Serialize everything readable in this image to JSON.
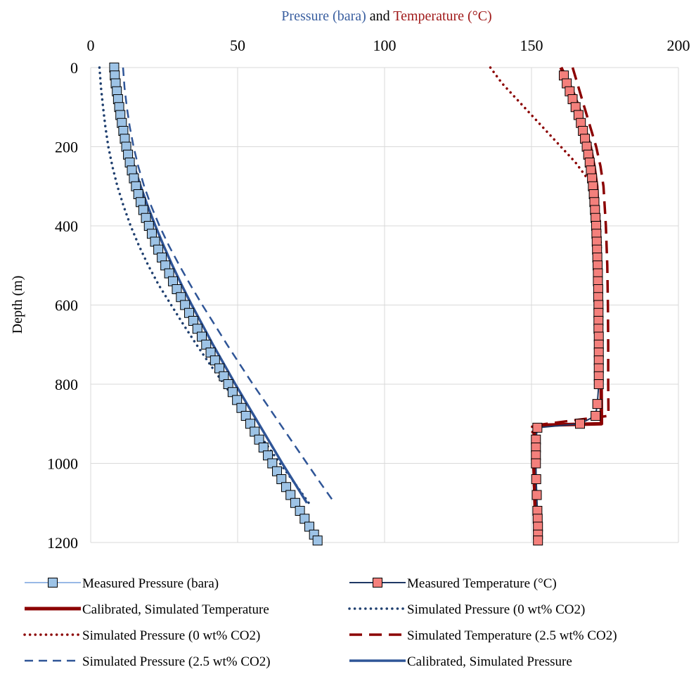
{
  "chart_data": {
    "type": "line",
    "title_parts": [
      {
        "text": "Pressure (bara)",
        "color": "#3a5fa0"
      },
      {
        "text": " and ",
        "color": "#000000"
      },
      {
        "text": "Temperature (°C)",
        "color": "#a01a1a"
      }
    ],
    "ylabel": "Depth (m)",
    "xlim": [
      0,
      200
    ],
    "ylim": [
      0,
      1200
    ],
    "y_inverted": true,
    "x_axis_position": "top",
    "x_ticks": [
      "0",
      "50",
      "100",
      "150",
      "200"
    ],
    "y_ticks": [
      "0",
      "200",
      "400",
      "600",
      "800",
      "1000",
      "1200"
    ],
    "grid": true,
    "legend_position": "bottom",
    "colors": {
      "measured_pressure_fill": "#9dc3e6",
      "measured_pressure_line": "#5b8fd6",
      "measured_temperature_fill": "#f4807c",
      "measured_temperature_line": "#1f3864",
      "dark_red": "#8b0000",
      "navy": "#1f3f6f",
      "blue": "#2f5597"
    },
    "series": [
      {
        "name": "Measured Pressure (bara)",
        "style": "thin-line-square-markers",
        "points": [
          [
            8,
            0
          ],
          [
            8.2,
            20
          ],
          [
            8.5,
            40
          ],
          [
            8.9,
            60
          ],
          [
            9.3,
            80
          ],
          [
            9.7,
            100
          ],
          [
            10.1,
            120
          ],
          [
            10.6,
            140
          ],
          [
            11.1,
            160
          ],
          [
            11.6,
            180
          ],
          [
            12.1,
            200
          ],
          [
            12.7,
            220
          ],
          [
            13.3,
            240
          ],
          [
            14,
            260
          ],
          [
            14.7,
            280
          ],
          [
            15.4,
            300
          ],
          [
            16.2,
            320
          ],
          [
            17,
            340
          ],
          [
            17.9,
            360
          ],
          [
            18.8,
            380
          ],
          [
            19.8,
            400
          ],
          [
            20.8,
            420
          ],
          [
            21.9,
            440
          ],
          [
            23,
            460
          ],
          [
            24.2,
            480
          ],
          [
            25.4,
            500
          ],
          [
            26.7,
            520
          ],
          [
            28,
            540
          ],
          [
            29.3,
            560
          ],
          [
            30.7,
            580
          ],
          [
            32.1,
            600
          ],
          [
            33.5,
            620
          ],
          [
            34.9,
            640
          ],
          [
            36.3,
            660
          ],
          [
            37.8,
            680
          ],
          [
            39.3,
            700
          ],
          [
            40.8,
            720
          ],
          [
            42.3,
            740
          ],
          [
            43.8,
            760
          ],
          [
            45.3,
            780
          ],
          [
            46.8,
            800
          ],
          [
            48.3,
            820
          ],
          [
            49.8,
            840
          ],
          [
            51.3,
            860
          ],
          [
            52.8,
            880
          ],
          [
            54.3,
            900
          ],
          [
            55.8,
            920
          ],
          [
            57.3,
            940
          ],
          [
            58.8,
            960
          ],
          [
            60.3,
            980
          ],
          [
            61.8,
            1000
          ],
          [
            63.4,
            1020
          ],
          [
            64.9,
            1040
          ],
          [
            66.5,
            1060
          ],
          [
            68,
            1080
          ],
          [
            69.6,
            1100
          ],
          [
            71.2,
            1120
          ],
          [
            72.8,
            1140
          ],
          [
            74.4,
            1160
          ],
          [
            76,
            1180
          ],
          [
            77.2,
            1195
          ]
        ]
      },
      {
        "name": "Measured Temperature (°C)",
        "style": "dark-line-square-markers",
        "points": [
          [
            161,
            20
          ],
          [
            162,
            40
          ],
          [
            163,
            60
          ],
          [
            164,
            80
          ],
          [
            165,
            100
          ],
          [
            166,
            120
          ],
          [
            166.8,
            140
          ],
          [
            167.5,
            160
          ],
          [
            168.2,
            180
          ],
          [
            168.8,
            200
          ],
          [
            169.3,
            220
          ],
          [
            169.8,
            240
          ],
          [
            170.2,
            260
          ],
          [
            170.6,
            280
          ],
          [
            170.9,
            300
          ],
          [
            171.2,
            320
          ],
          [
            171.4,
            340
          ],
          [
            171.6,
            360
          ],
          [
            171.8,
            380
          ],
          [
            172,
            400
          ],
          [
            172.1,
            420
          ],
          [
            172.2,
            440
          ],
          [
            172.3,
            460
          ],
          [
            172.4,
            480
          ],
          [
            172.5,
            500
          ],
          [
            172.6,
            520
          ],
          [
            172.6,
            540
          ],
          [
            172.7,
            560
          ],
          [
            172.7,
            580
          ],
          [
            172.8,
            600
          ],
          [
            172.8,
            620
          ],
          [
            172.8,
            640
          ],
          [
            172.8,
            660
          ],
          [
            172.9,
            680
          ],
          [
            172.9,
            700
          ],
          [
            172.9,
            720
          ],
          [
            172.9,
            740
          ],
          [
            172.9,
            760
          ],
          [
            172.9,
            780
          ],
          [
            172.9,
            800
          ],
          [
            172.4,
            850
          ],
          [
            171.8,
            880
          ],
          [
            166.5,
            900
          ],
          [
            152,
            910
          ],
          [
            151.5,
            940
          ],
          [
            151.5,
            960
          ],
          [
            151.5,
            980
          ],
          [
            151.5,
            1000
          ],
          [
            151.6,
            1040
          ],
          [
            151.8,
            1080
          ],
          [
            152,
            1120
          ],
          [
            152.1,
            1140
          ],
          [
            152.2,
            1160
          ],
          [
            152.2,
            1180
          ],
          [
            152.2,
            1195
          ]
        ]
      },
      {
        "name": "Calibrated, Simulated Temperature",
        "style": "thick-solid",
        "points": [
          [
            160,
            0
          ],
          [
            162,
            30
          ],
          [
            164,
            60
          ],
          [
            166,
            100
          ],
          [
            168,
            150
          ],
          [
            170,
            200
          ],
          [
            171.3,
            250
          ],
          [
            172.2,
            300
          ],
          [
            172.8,
            400
          ],
          [
            173.2,
            500
          ],
          [
            173.5,
            600
          ],
          [
            173.6,
            700
          ],
          [
            173.7,
            800
          ],
          [
            173.8,
            900
          ],
          [
            151,
            904
          ],
          [
            150.8,
            950
          ],
          [
            150.8,
            1000
          ],
          [
            151,
            1050
          ],
          [
            151.2,
            1100
          ],
          [
            151.4,
            1150
          ],
          [
            151.5,
            1195
          ]
        ]
      },
      {
        "name": "Simulated Pressure (0 wt% CO2)",
        "style": "dotted-navy",
        "points": [
          [
            3,
            0
          ],
          [
            3.5,
            50
          ],
          [
            4.2,
            100
          ],
          [
            5,
            150
          ],
          [
            6,
            200
          ],
          [
            7.4,
            250
          ],
          [
            9.1,
            300
          ],
          [
            11.2,
            350
          ],
          [
            13.6,
            400
          ],
          [
            16.4,
            450
          ],
          [
            19.6,
            500
          ],
          [
            23.2,
            550
          ],
          [
            27.4,
            600
          ],
          [
            31.6,
            650
          ],
          [
            36,
            700
          ],
          [
            40.6,
            750
          ],
          [
            45.4,
            800
          ],
          [
            50,
            850
          ],
          [
            54.8,
            900
          ],
          [
            59.6,
            950
          ],
          [
            64.4,
            1000
          ],
          [
            69.4,
            1050
          ],
          [
            74.2,
            1100
          ]
        ]
      },
      {
        "name": "Simulated Pressure (0 wt% CO2)",
        "style": "dotted-red",
        "points": [
          [
            136,
            0
          ],
          [
            140,
            40
          ],
          [
            145,
            80
          ],
          [
            150,
            120
          ],
          [
            155,
            160
          ],
          [
            160,
            200
          ],
          [
            165,
            240
          ],
          [
            169,
            280
          ],
          [
            172,
            320
          ],
          [
            173.2,
            380
          ],
          [
            173.6,
            450
          ],
          [
            173.6,
            500
          ],
          [
            173.6,
            550
          ],
          [
            173.6,
            600
          ],
          [
            173.6,
            650
          ],
          [
            173.6,
            700
          ],
          [
            173.6,
            750
          ],
          [
            173.6,
            800
          ],
          [
            173.6,
            850
          ],
          [
            173.6,
            900
          ],
          [
            150.2,
            905
          ],
          [
            150.5,
            950
          ],
          [
            150.6,
            1000
          ],
          [
            150.8,
            1050
          ],
          [
            151,
            1100
          ],
          [
            151.1,
            1150
          ],
          [
            151.2,
            1195
          ]
        ]
      },
      {
        "name": "Simulated Temperature (2.5 wt% CO2)",
        "style": "dashed-red",
        "points": [
          [
            164,
            0
          ],
          [
            166,
            50
          ],
          [
            168,
            100
          ],
          [
            170,
            150
          ],
          [
            172,
            200
          ],
          [
            173.5,
            250
          ],
          [
            174.5,
            300
          ],
          [
            175.3,
            400
          ],
          [
            175.8,
            500
          ],
          [
            176,
            600
          ],
          [
            176.1,
            700
          ],
          [
            176.1,
            800
          ],
          [
            176.2,
            880
          ],
          [
            151.2,
            904
          ],
          [
            151,
            950
          ],
          [
            151,
            1000
          ],
          [
            151.2,
            1050
          ],
          [
            151.4,
            1100
          ],
          [
            151.6,
            1150
          ],
          [
            151.7,
            1195
          ]
        ]
      },
      {
        "name": "Simulated Pressure (2.5 wt% CO2)",
        "style": "dashed-navy",
        "points": [
          [
            11,
            0
          ],
          [
            11.5,
            50
          ],
          [
            12.3,
            100
          ],
          [
            13.3,
            150
          ],
          [
            14.6,
            200
          ],
          [
            16.2,
            250
          ],
          [
            18.2,
            300
          ],
          [
            20.6,
            350
          ],
          [
            23.4,
            400
          ],
          [
            26.6,
            450
          ],
          [
            30.2,
            500
          ],
          [
            34,
            550
          ],
          [
            38,
            600
          ],
          [
            42.2,
            650
          ],
          [
            46.4,
            700
          ],
          [
            50.8,
            750
          ],
          [
            55.2,
            800
          ],
          [
            59.8,
            850
          ],
          [
            64.4,
            900
          ],
          [
            69,
            950
          ],
          [
            73.6,
            1000
          ],
          [
            78.2,
            1050
          ],
          [
            83,
            1100
          ]
        ]
      },
      {
        "name": "Calibrated, Simulated Pressure",
        "style": "solid-blue",
        "points": [
          [
            8,
            0
          ],
          [
            8.5,
            50
          ],
          [
            9.8,
            100
          ],
          [
            11.2,
            150
          ],
          [
            12.8,
            200
          ],
          [
            14.8,
            250
          ],
          [
            17,
            300
          ],
          [
            19.4,
            350
          ],
          [
            22,
            400
          ],
          [
            24.8,
            450
          ],
          [
            27.8,
            500
          ],
          [
            31,
            550
          ],
          [
            34.4,
            600
          ],
          [
            38,
            650
          ],
          [
            41.6,
            700
          ],
          [
            45.4,
            750
          ],
          [
            49.2,
            800
          ],
          [
            53.2,
            850
          ],
          [
            57.2,
            900
          ],
          [
            61.2,
            950
          ],
          [
            65.2,
            1000
          ],
          [
            69.4,
            1050
          ],
          [
            73.6,
            1100
          ]
        ]
      }
    ]
  }
}
